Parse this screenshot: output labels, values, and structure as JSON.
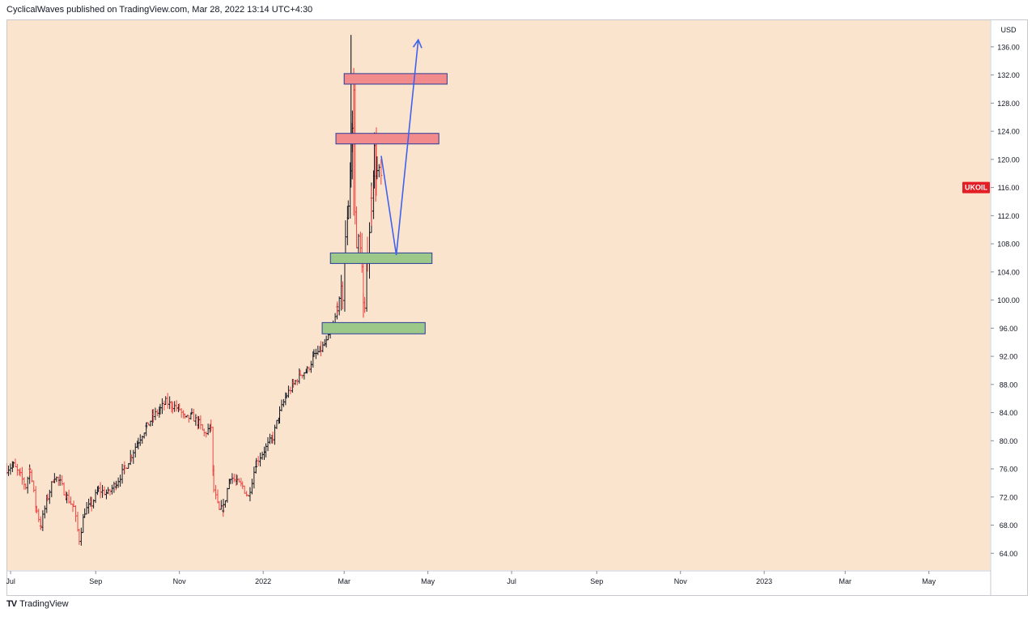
{
  "header": {
    "attribution": "CyclicalWaves published on TradingView.com, Mar 28, 2022 13:14 UTC+4:30"
  },
  "footer": {
    "logo_glyph": "𝟣𝟩",
    "brand": "TradingView"
  },
  "colors": {
    "plot_background": "#fae4cd",
    "up_bar": "#131722",
    "down_bar": "#ef4444",
    "resistance_fill": "#f28b8b",
    "support_fill": "#9cc88a",
    "zone_border": "#2a3b9a",
    "projection": "#3d63f0",
    "symbol_badge": "#e31e24",
    "axis_text": "#131722"
  },
  "chart_data": {
    "type": "ohlc",
    "symbol_label": "UKOIL",
    "currency_label": "USD",
    "y_ticks": [
      "136.00",
      "132.00",
      "128.00",
      "124.00",
      "120.00",
      "116.00",
      "112.00",
      "108.00",
      "104.00",
      "100.00",
      "96.00",
      "92.00",
      "88.00",
      "84.00",
      "80.00",
      "76.00",
      "72.00",
      "68.00",
      "64.00"
    ],
    "y_tick_values": [
      136,
      132,
      128,
      124,
      120,
      116,
      112,
      108,
      104,
      100,
      96,
      92,
      88,
      84,
      80,
      76,
      72,
      68,
      64
    ],
    "ylim": [
      61.5,
      139.9
    ],
    "x_ticks": [
      "Jul",
      "Sep",
      "Nov",
      "2022",
      "Mar",
      "May",
      "Jul",
      "Sep",
      "Nov",
      "2023",
      "Mar",
      "May"
    ],
    "x_tick_dates": [
      "2021-07-01",
      "2021-09-01",
      "2021-11-01",
      "2022-01-01",
      "2022-03-01",
      "2022-05-01",
      "2022-07-01",
      "2022-09-01",
      "2022-11-01",
      "2023-01-01",
      "2023-03-01",
      "2023-05-01"
    ],
    "xlim": [
      "2021-06-28",
      "2023-06-15"
    ],
    "grid": false,
    "last_price": 116.0,
    "price_path": [
      [
        "2021-06-28",
        76
      ],
      [
        "2021-07-03",
        76.5
      ],
      [
        "2021-07-08",
        75
      ],
      [
        "2021-07-12",
        73.5
      ],
      [
        "2021-07-15",
        76
      ],
      [
        "2021-07-20",
        70
      ],
      [
        "2021-07-23",
        68
      ],
      [
        "2021-07-28",
        72
      ],
      [
        "2021-08-02",
        75
      ],
      [
        "2021-08-06",
        74
      ],
      [
        "2021-08-11",
        72
      ],
      [
        "2021-08-16",
        70.5
      ],
      [
        "2021-08-20",
        66
      ],
      [
        "2021-08-24",
        70
      ],
      [
        "2021-08-29",
        71
      ],
      [
        "2021-09-03",
        73
      ],
      [
        "2021-09-10",
        72.5
      ],
      [
        "2021-09-16",
        74
      ],
      [
        "2021-09-22",
        76
      ],
      [
        "2021-09-27",
        78
      ],
      [
        "2021-10-02",
        80
      ],
      [
        "2021-10-08",
        82
      ],
      [
        "2021-10-13",
        83.5
      ],
      [
        "2021-10-18",
        84.5
      ],
      [
        "2021-10-22",
        85.5
      ],
      [
        "2021-10-27",
        85
      ],
      [
        "2021-11-01",
        84.5
      ],
      [
        "2021-11-05",
        83
      ],
      [
        "2021-11-10",
        83.5
      ],
      [
        "2021-11-15",
        82.5
      ],
      [
        "2021-11-19",
        81
      ],
      [
        "2021-11-24",
        82
      ],
      [
        "2021-11-26",
        73
      ],
      [
        "2021-11-30",
        70
      ],
      [
        "2021-12-03",
        70.5
      ],
      [
        "2021-12-08",
        75
      ],
      [
        "2021-12-13",
        74
      ],
      [
        "2021-12-17",
        73.5
      ],
      [
        "2021-12-21",
        72
      ],
      [
        "2021-12-27",
        77
      ],
      [
        "2022-01-03",
        79
      ],
      [
        "2022-01-08",
        80.5
      ],
      [
        "2022-01-13",
        84
      ],
      [
        "2022-01-18",
        86.5
      ],
      [
        "2022-01-23",
        88
      ],
      [
        "2022-01-28",
        89.5
      ],
      [
        "2022-02-02",
        90
      ],
      [
        "2022-02-07",
        92
      ],
      [
        "2022-02-12",
        93
      ],
      [
        "2022-02-16",
        94
      ],
      [
        "2022-02-21",
        96
      ],
      [
        "2022-02-24",
        99
      ],
      [
        "2022-02-28",
        101
      ],
      [
        "2022-03-02",
        108
      ],
      [
        "2022-03-04",
        114
      ],
      [
        "2022-03-07",
        124
      ],
      [
        "2022-03-08",
        130
      ],
      [
        "2022-03-09",
        112
      ],
      [
        "2022-03-10",
        109
      ],
      [
        "2022-03-14",
        106
      ],
      [
        "2022-03-15",
        99.5
      ],
      [
        "2022-03-16",
        98.5
      ],
      [
        "2022-03-18",
        107
      ],
      [
        "2022-03-21",
        114
      ],
      [
        "2022-03-23",
        121
      ],
      [
        "2022-03-25",
        118
      ],
      [
        "2022-03-28",
        117
      ]
    ],
    "spike_bars": [
      {
        "date": "2022-03-06",
        "high": 137.7,
        "low": 116,
        "direction": "up"
      },
      {
        "date": "2022-03-08",
        "high": 133,
        "low": 112,
        "direction": "down"
      },
      {
        "date": "2022-03-24",
        "high": 123.8,
        "low": 114,
        "direction": "down"
      },
      {
        "date": "2022-03-15",
        "high": 101,
        "low": 97.5,
        "direction": "down"
      }
    ],
    "zones": [
      {
        "kind": "resistance",
        "start": "2022-03-01",
        "end": "2022-05-15",
        "low": 130.7,
        "high": 132.2
      },
      {
        "kind": "resistance",
        "start": "2022-02-23",
        "end": "2022-05-09",
        "low": 122.2,
        "high": 123.7
      },
      {
        "kind": "support",
        "start": "2022-02-19",
        "end": "2022-05-04",
        "low": 105.2,
        "high": 106.7
      },
      {
        "kind": "support",
        "start": "2022-02-13",
        "end": "2022-04-29",
        "low": 95.2,
        "high": 96.8
      }
    ],
    "projection": {
      "points": [
        [
          "2022-03-28",
          120.5
        ],
        [
          "2022-04-08",
          106.4
        ],
        [
          "2022-04-24",
          137
        ]
      ],
      "arrowhead": true
    }
  }
}
